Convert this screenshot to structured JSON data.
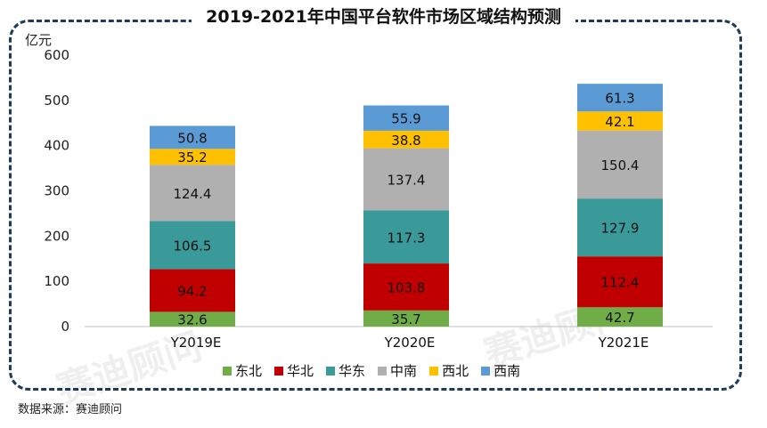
{
  "title": "2019-2021年中国平台软件市场区域结构预测",
  "source": "数据来源：赛迪顾问",
  "watermark": "赛迪顾问",
  "chart_data": {
    "type": "bar",
    "stacked": true,
    "unit": "亿元",
    "categories": [
      "Y2019E",
      "Y2020E",
      "Y2021E"
    ],
    "ylim": [
      0,
      600
    ],
    "yticks": [
      0,
      100,
      200,
      300,
      400,
      500,
      600
    ],
    "grid": false,
    "legend_position": "bottom",
    "series": [
      {
        "name": "东北",
        "color": "#70ad47",
        "values": [
          32.6,
          35.7,
          42.7
        ]
      },
      {
        "name": "华北",
        "color": "#c00000",
        "values": [
          94.2,
          103.8,
          112.4
        ]
      },
      {
        "name": "华东",
        "color": "#3a9a9a",
        "values": [
          106.5,
          117.3,
          127.9
        ]
      },
      {
        "name": "中南",
        "color": "#b0b0b0",
        "values": [
          124.4,
          137.4,
          150.4
        ]
      },
      {
        "name": "西北",
        "color": "#ffc000",
        "values": [
          35.2,
          38.8,
          42.1
        ]
      },
      {
        "name": "西南",
        "color": "#5b9bd5",
        "values": [
          50.8,
          55.9,
          61.3
        ]
      }
    ]
  }
}
